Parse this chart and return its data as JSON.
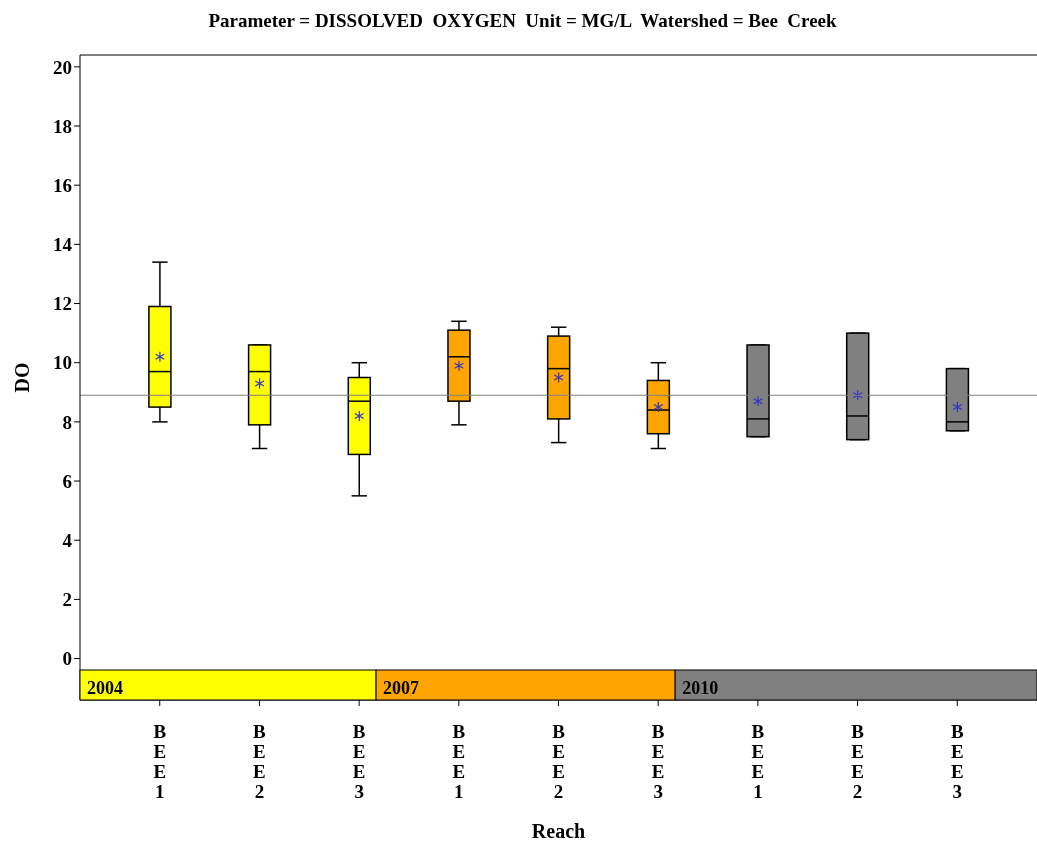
{
  "chart_data": {
    "type": "box",
    "title": "Parameter = DISSOLVED  OXYGEN  Unit = MG/L  Watershed = Bee  Creek",
    "xlabel": "Reach",
    "ylabel": "DO",
    "categories": [
      "BEE1",
      "BEE2",
      "BEE3",
      "BEE1",
      "BEE2",
      "BEE3",
      "BEE1",
      "BEE2",
      "BEE3"
    ],
    "ylim": [
      -1.4,
      20.4
    ],
    "yticks": [
      0,
      2,
      4,
      6,
      8,
      10,
      12,
      14,
      16,
      18,
      20
    ],
    "grid": false,
    "legend": "bottom",
    "ref_lines": [
      {
        "axis": "y",
        "value": 8.9,
        "color": "#808080"
      }
    ],
    "series": [
      {
        "name": "2004",
        "color": "#ffff00",
        "boxes": [
          {
            "low": 8.0,
            "q1": 8.5,
            "median": 9.7,
            "q3": 11.9,
            "high": 13.4,
            "mean": 10.2
          },
          {
            "low": 7.1,
            "q1": 7.9,
            "median": 9.7,
            "q3": 10.6,
            "high": 10.6,
            "mean": 9.3
          },
          {
            "low": 5.5,
            "q1": 6.9,
            "median": 8.7,
            "q3": 9.5,
            "high": 10.0,
            "mean": 8.2
          },
          null,
          null,
          null,
          null,
          null,
          null
        ]
      },
      {
        "name": "2007",
        "color": "#ffa500",
        "boxes": [
          null,
          null,
          null,
          {
            "low": 7.9,
            "q1": 8.7,
            "median": 10.2,
            "q3": 11.1,
            "high": 11.4,
            "mean": 9.9
          },
          {
            "low": 7.3,
            "q1": 8.1,
            "median": 9.8,
            "q3": 10.9,
            "high": 11.2,
            "mean": 9.5
          },
          {
            "low": 7.1,
            "q1": 7.6,
            "median": 8.4,
            "q3": 9.4,
            "high": 10.0,
            "mean": 8.5
          },
          null,
          null,
          null
        ]
      },
      {
        "name": "2010",
        "color": "#808080",
        "boxes": [
          null,
          null,
          null,
          null,
          null,
          null,
          {
            "low": 7.5,
            "q1": 7.5,
            "median": 8.1,
            "q3": 10.6,
            "high": 10.6,
            "mean": 8.7
          },
          {
            "low": 7.4,
            "q1": 7.4,
            "median": 8.2,
            "q3": 11.0,
            "high": 11.0,
            "mean": 8.9
          },
          {
            "low": 7.7,
            "q1": 7.7,
            "median": 8.0,
            "q3": 9.8,
            "high": 9.8,
            "mean": 8.5
          }
        ]
      }
    ]
  }
}
